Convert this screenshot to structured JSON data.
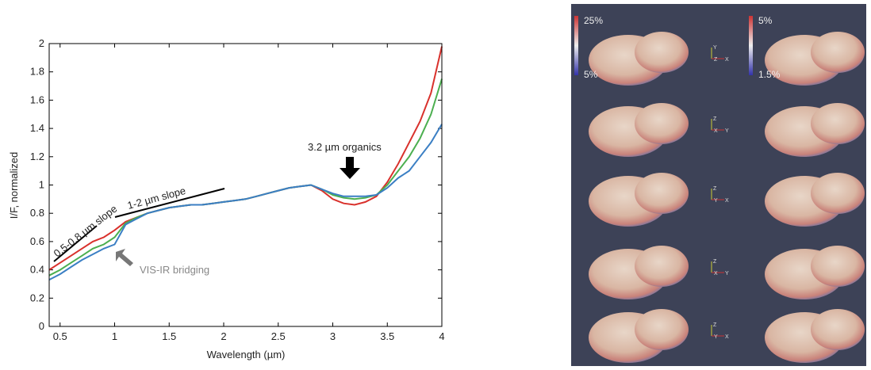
{
  "chart_data": {
    "type": "line",
    "x_label": "Wavelength (µm)",
    "y_label": "I/F, normalized",
    "x": [
      0.4,
      0.5,
      0.6,
      0.7,
      0.8,
      0.9,
      1.0,
      1.1,
      1.2,
      1.3,
      1.4,
      1.5,
      1.6,
      1.7,
      1.8,
      1.9,
      2.0,
      2.1,
      2.2,
      2.3,
      2.4,
      2.5,
      2.6,
      2.7,
      2.8,
      2.9,
      3.0,
      3.1,
      3.2,
      3.3,
      3.4,
      3.5,
      3.6,
      3.7,
      3.8,
      3.9,
      4.0
    ],
    "series": [
      {
        "color": "#d9312c",
        "values": [
          0.4,
          0.45,
          0.5,
          0.55,
          0.6,
          0.63,
          0.68,
          0.74,
          0.77,
          0.8,
          0.82,
          0.84,
          0.85,
          0.86,
          0.86,
          0.87,
          0.88,
          0.89,
          0.9,
          0.92,
          0.94,
          0.96,
          0.98,
          0.99,
          1.0,
          0.96,
          0.9,
          0.87,
          0.86,
          0.88,
          0.92,
          1.02,
          1.15,
          1.3,
          1.45,
          1.65,
          1.98
        ]
      },
      {
        "color": "#4caf50",
        "values": [
          0.36,
          0.4,
          0.45,
          0.5,
          0.55,
          0.58,
          0.63,
          0.73,
          0.77,
          0.8,
          0.82,
          0.84,
          0.85,
          0.86,
          0.86,
          0.87,
          0.88,
          0.89,
          0.9,
          0.92,
          0.94,
          0.96,
          0.98,
          0.99,
          1.0,
          0.97,
          0.93,
          0.91,
          0.9,
          0.91,
          0.93,
          1.0,
          1.1,
          1.2,
          1.33,
          1.5,
          1.75
        ]
      },
      {
        "color": "#3b7fc4",
        "values": [
          0.33,
          0.37,
          0.42,
          0.47,
          0.51,
          0.55,
          0.58,
          0.72,
          0.76,
          0.8,
          0.82,
          0.84,
          0.85,
          0.86,
          0.86,
          0.87,
          0.88,
          0.89,
          0.9,
          0.92,
          0.94,
          0.96,
          0.98,
          0.99,
          1.0,
          0.97,
          0.94,
          0.92,
          0.92,
          0.92,
          0.93,
          0.98,
          1.05,
          1.1,
          1.2,
          1.3,
          1.43
        ]
      }
    ],
    "xlim": [
      0.4,
      4
    ],
    "xticks": [
      0.5,
      1,
      1.5,
      2,
      2.5,
      3,
      3.5,
      4
    ],
    "ylim": [
      0,
      2
    ],
    "yticks": [
      0,
      0.2,
      0.4,
      0.6,
      0.8,
      1,
      1.2,
      1.4,
      1.6,
      1.8,
      2
    ],
    "annotations": [
      "0.5-0.8 µm slope",
      "1-2 µm slope",
      "3.2 µm organics",
      "VIS-IR bridging"
    ]
  },
  "images": {
    "colorbars": [
      {
        "top": "25%",
        "bottom": "5%"
      },
      {
        "top": "5%",
        "bottom": "1.5%"
      }
    ],
    "triads": [
      [
        "Y",
        "Z",
        "X"
      ],
      [
        "Z",
        "X",
        "Y"
      ],
      [
        "Z",
        "Y",
        "X"
      ],
      [
        "Z",
        "X",
        "Y"
      ],
      [
        "Z",
        "Y",
        "X"
      ]
    ]
  }
}
